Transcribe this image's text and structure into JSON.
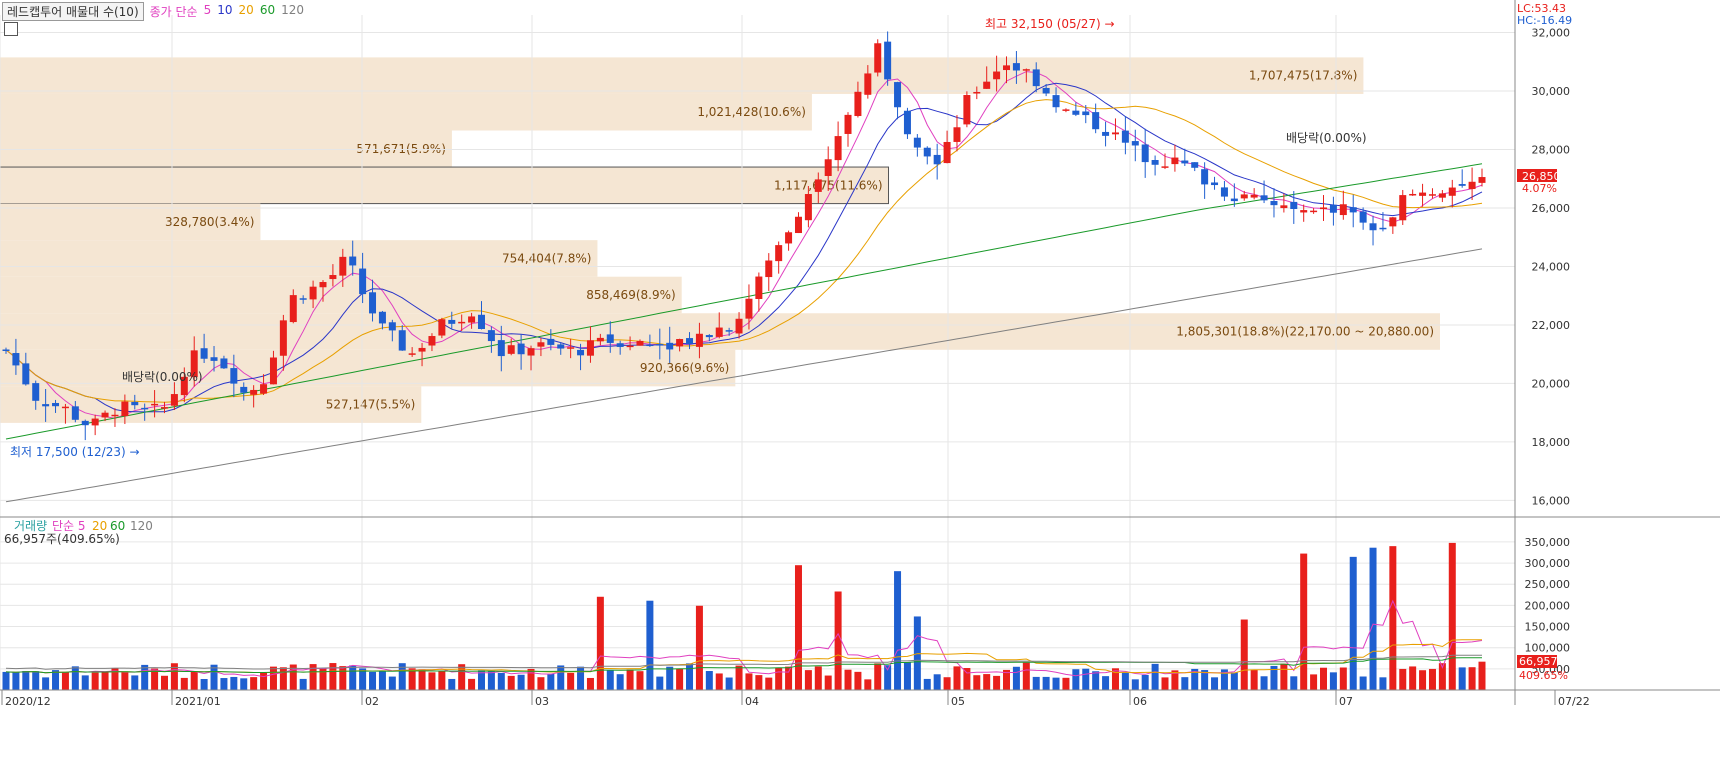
{
  "toolbar": {
    "combo_label": "레드캡투어 매물대 수(10)",
    "price_label": "종가 단순",
    "ma5": "5",
    "ma10": "10",
    "ma20": "20",
    "ma60": "60",
    "ma120": "120"
  },
  "top_right": {
    "lc": "LC:53.43",
    "hc": "HC:-16.49"
  },
  "annotations": {
    "high": "최고 32,150 (05/27)",
    "low": "최저 17,500 (12/23)",
    "div1": "배당락(0.00%)",
    "div2": "배당락(0.00%)"
  },
  "last_price": {
    "value": "26,850",
    "change": "4.07%"
  },
  "volume_panel": {
    "title": "거래량",
    "ma_label": "단순",
    "ma5": "5",
    "ma20": "20",
    "ma60": "60",
    "ma120": "120",
    "current": "66,957주(409.65%)",
    "last_volume": "66,957",
    "last_pct": "409.65%"
  },
  "colors": {
    "up": "#e8201c",
    "down": "#1f5fd0",
    "ma5": "#e040c0",
    "ma10": "#2a36c8",
    "ma20": "#e8a000",
    "ma60": "#1a9a2a",
    "ma120": "#808080",
    "profile": "#f5e6d3",
    "axis_text": "#333333",
    "grid": "#e6e6e6"
  },
  "chart_data": {
    "type": "candlestick",
    "x_labels": [
      "2020/12",
      "2021/01",
      "02",
      "03",
      "04",
      "05",
      "06",
      "07",
      "07/22"
    ],
    "y_ticks": [
      16000,
      18000,
      20000,
      22000,
      24000,
      26000,
      28000,
      30000,
      32000
    ],
    "y_tick_labels": [
      "16,000",
      "18,000",
      "20,000",
      "22,000",
      "24,000",
      "26,000",
      "28,000",
      "30,000",
      "32,000"
    ],
    "ylim": [
      15500,
      32600
    ],
    "volume_ticks": [
      "50,000",
      "100,000",
      "150,000",
      "200,000",
      "250,000",
      "300,000",
      "350,000"
    ],
    "volume_tick_values": [
      50000,
      100000,
      150000,
      200000,
      250000,
      300000,
      350000
    ],
    "volume_ylim": [
      0,
      390000
    ],
    "volume_profile": [
      {
        "label": "1,707,475(17.8%)",
        "low": 29900,
        "high": 31150,
        "pct": 17.8
      },
      {
        "label": "1,021,428(10.6%)",
        "low": 28650,
        "high": 29900,
        "pct": 10.6
      },
      {
        "label": "571,671(5.9%)",
        "low": 27400,
        "high": 28650,
        "pct": 5.9
      },
      {
        "label": "1,117,675(11.6%)",
        "low": 26150,
        "high": 27400,
        "pct": 11.6
      },
      {
        "label": "328,780(3.4%)",
        "low": 24900,
        "high": 26150,
        "pct": 3.4
      },
      {
        "label": "754,404(7.8%)",
        "low": 23650,
        "high": 24900,
        "pct": 7.8
      },
      {
        "label": "858,469(8.9%)",
        "low": 22400,
        "high": 23650,
        "pct": 8.9
      },
      {
        "label": "1,805,301(18.8%)(22,170.00 ~ 20,880.00)",
        "low": 21150,
        "high": 22400,
        "pct": 18.8
      },
      {
        "label": "920,366(9.6%)",
        "low": 19900,
        "high": 21150,
        "pct": 9.6
      },
      {
        "label": "527,147(5.5%)",
        "low": 18650,
        "high": 19900,
        "pct": 5.5
      }
    ],
    "series_notes": [
      "candles",
      "ma5",
      "ma10",
      "ma20",
      "ma60",
      "ma120",
      "volume"
    ]
  }
}
